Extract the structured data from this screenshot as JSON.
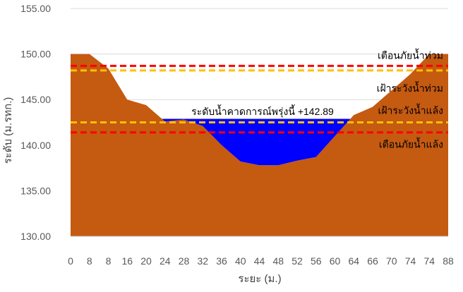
{
  "chart_data": {
    "type": "area",
    "title": "",
    "xlabel": "ระยะ (ม.)",
    "ylabel": "ระดับ (ม.รทก.)",
    "ylim": [
      130,
      155
    ],
    "yticks": [
      "130.00",
      "135.00",
      "140.00",
      "145.00",
      "150.00",
      "155.00"
    ],
    "x_categories": [
      "0",
      "8",
      "8",
      "16",
      "20",
      "24",
      "28",
      "32",
      "36",
      "40",
      "44",
      "48",
      "52",
      "56",
      "60",
      "64",
      "66",
      "70",
      "74",
      "74",
      "88"
    ],
    "ground_profile": {
      "name": "ground",
      "color": "#c55a11",
      "values": [
        150.0,
        150.0,
        148.4,
        145.0,
        144.4,
        142.6,
        142.8,
        142.1,
        140.0,
        138.2,
        137.8,
        137.8,
        138.3,
        138.7,
        141.0,
        143.3,
        144.2,
        146.0,
        147.8,
        150.0,
        150.0
      ]
    },
    "water": {
      "color": "#0000ff",
      "level": 142.89,
      "label": "ระดับน้ำคาดการณ์พรุ่งนี้ +142.89"
    },
    "reference_lines": [
      {
        "label": "เตือนภัยน้ำท่วม",
        "value": 148.7,
        "color": "#ff0000"
      },
      {
        "label": "เฝ้าระวังน้ำท่วม",
        "value": 148.2,
        "color": "#ffc000"
      },
      {
        "label": "เฝ้าระวังน้ำแล้ง",
        "value": 142.5,
        "color": "#ffc000"
      },
      {
        "label": "เตือนภัยน้ำแล้ง",
        "value": 141.4,
        "color": "#ff0000"
      }
    ],
    "grid": true,
    "legend": "none"
  }
}
